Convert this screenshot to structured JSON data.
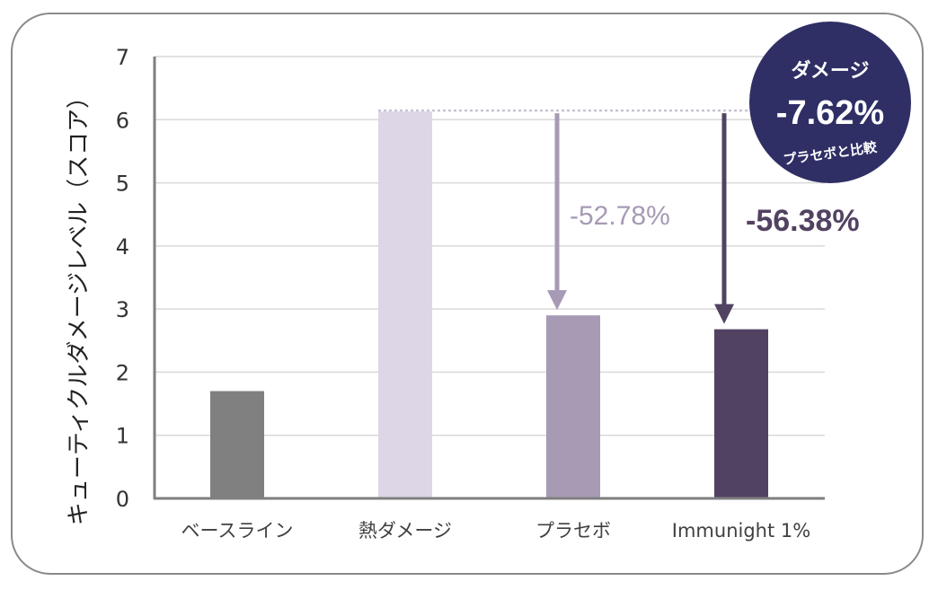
{
  "chart_data": {
    "type": "bar",
    "ylabel": "キューティクルダメージレベル（スコア）",
    "ylim": [
      0,
      7
    ],
    "yticks": [
      0,
      1,
      2,
      3,
      4,
      5,
      6,
      7
    ],
    "grid": true,
    "categories": [
      "ベースライン",
      "熱ダメージ",
      "プラセボ",
      "Immunight 1%"
    ],
    "values": [
      1.7,
      6.13,
      2.9,
      2.68
    ],
    "bar_colors": [
      "#808080",
      "#dcd6e6",
      "#a79ab4",
      "#524262"
    ],
    "reference_line_value": 6.13,
    "annotations": [
      {
        "label": "-52.78%",
        "from_value": 6.13,
        "to_value": 2.9,
        "category_index": 2,
        "color": "#a79ab4"
      },
      {
        "label": "-56.38%",
        "from_value": 6.13,
        "to_value": 2.68,
        "category_index": 3,
        "color": "#524262"
      }
    ],
    "badge": {
      "title": "ダメージ",
      "value": "-7.62%",
      "caption": "プラセボと比較",
      "color": "#2f2f66"
    }
  }
}
